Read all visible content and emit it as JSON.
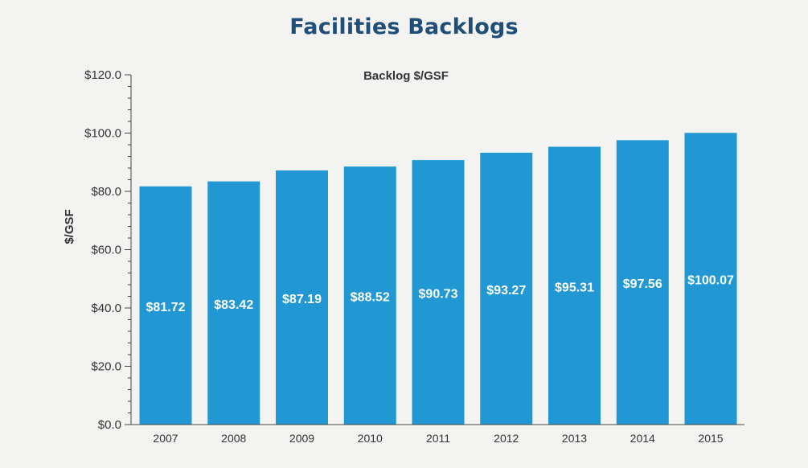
{
  "page": {
    "title": "Facilities Backlogs"
  },
  "chart_data": {
    "type": "bar",
    "title": "Backlog $/GSF",
    "xlabel": "",
    "ylabel": "$/GSF",
    "categories": [
      "2007",
      "2008",
      "2009",
      "2010",
      "2011",
      "2012",
      "2013",
      "2014",
      "2015"
    ],
    "values": [
      81.72,
      83.42,
      87.19,
      88.52,
      90.73,
      93.27,
      95.31,
      97.56,
      100.07
    ],
    "data_labels": [
      "$81.72",
      "$83.42",
      "$87.19",
      "$88.52",
      "$90.73",
      "$93.27",
      "$95.31",
      "$97.56",
      "$100.07"
    ],
    "ylim": [
      0,
      120
    ],
    "y_ticks": [
      0,
      20,
      40,
      60,
      80,
      100,
      120
    ],
    "y_tick_labels": [
      "$0.0",
      "$20.0",
      "$40.0",
      "$60.0",
      "$80.0",
      "$100.0",
      "$120.0"
    ],
    "grid": false,
    "bar_color": "#2197d4"
  }
}
